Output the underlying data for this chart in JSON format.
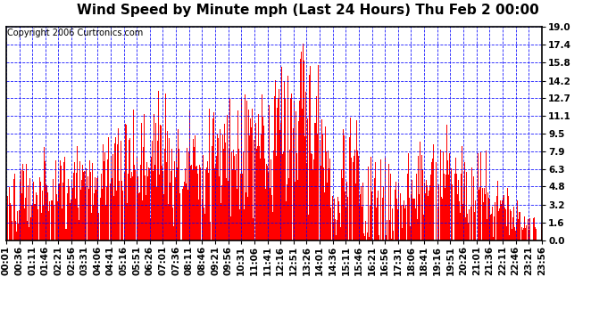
{
  "title": "Wind Speed by Minute mph (Last 24 Hours) Thu Feb 2 00:00",
  "copyright": "Copyright 2006 Curtronics.com",
  "ylabel_ticks": [
    0.0,
    1.6,
    3.2,
    4.8,
    6.3,
    7.9,
    9.5,
    11.1,
    12.7,
    14.2,
    15.8,
    17.4,
    19.0
  ],
  "ymax": 19.0,
  "ymin": 0.0,
  "bar_color": "#ff0000",
  "background_color": "#ffffff",
  "grid_color": "#0000ff",
  "border_color": "#000000",
  "title_fontsize": 11,
  "copyright_fontsize": 7,
  "tick_label_fontsize": 7.5,
  "x_tick_labels": [
    "00:01",
    "00:36",
    "01:11",
    "01:46",
    "02:21",
    "02:56",
    "03:31",
    "04:06",
    "04:41",
    "05:16",
    "05:51",
    "06:26",
    "07:01",
    "07:36",
    "08:11",
    "08:46",
    "09:21",
    "09:56",
    "10:31",
    "11:06",
    "11:41",
    "12:16",
    "12:51",
    "13:26",
    "14:01",
    "14:36",
    "15:11",
    "15:46",
    "16:21",
    "16:56",
    "17:31",
    "18:06",
    "18:41",
    "19:16",
    "19:51",
    "20:26",
    "21:01",
    "21:36",
    "22:11",
    "22:46",
    "23:21",
    "23:56"
  ]
}
